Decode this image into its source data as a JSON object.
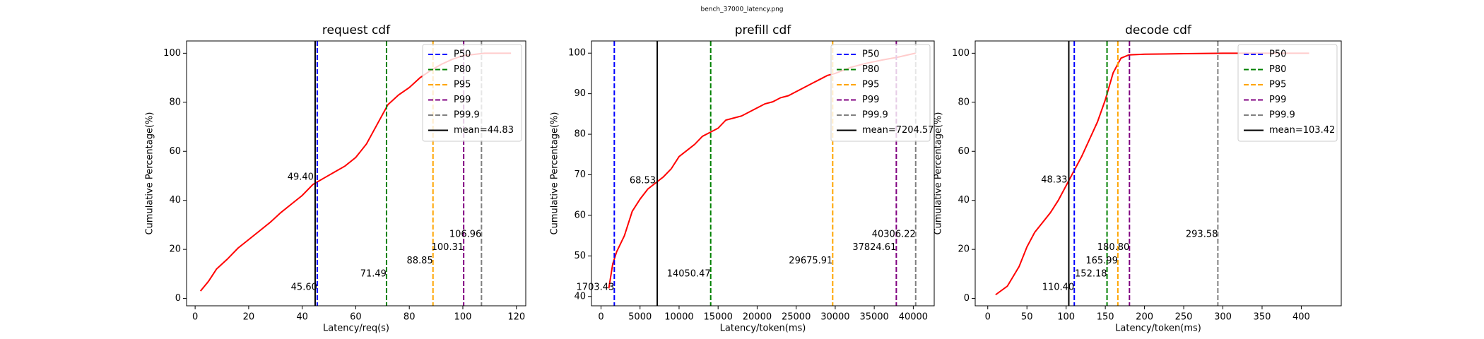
{
  "page_title": "bench_37000_latency.png",
  "chart_data": [
    {
      "type": "line",
      "title": "request cdf",
      "xlabel": "Latency/req(s)",
      "ylabel": "Cumulative Percentage(%)",
      "x": [
        2,
        5,
        8,
        12,
        16,
        20,
        24,
        28,
        32,
        36,
        40,
        44,
        48,
        52,
        56,
        60,
        64,
        68,
        72,
        76,
        80,
        84,
        88,
        92,
        96,
        100,
        104,
        108,
        112,
        118
      ],
      "values": [
        3,
        7,
        12,
        16,
        20.5,
        24,
        27.5,
        31,
        35,
        38.5,
        42,
        46.5,
        49,
        51.5,
        54,
        57.5,
        63,
        71,
        79,
        83,
        86,
        90,
        93,
        95.5,
        97.5,
        99,
        99.5,
        100,
        100,
        100
      ],
      "color": "red",
      "xlim": [
        -3.2,
        123.5
      ],
      "ylim": [
        -3,
        105
      ],
      "xticks": [
        0,
        20,
        40,
        60,
        80,
        100,
        120
      ],
      "yticks": [
        0,
        20,
        40,
        60,
        80,
        100
      ],
      "percentiles": [
        {
          "name": "P50",
          "color": "blue",
          "value": 45.6,
          "label": "45.60"
        },
        {
          "name": "P80",
          "color": "green",
          "value": 71.49,
          "label": "71.49"
        },
        {
          "name": "P95",
          "color": "orange",
          "value": 88.85,
          "label": "88.85"
        },
        {
          "name": "P99",
          "color": "purple",
          "value": 100.31,
          "label": "100.31"
        },
        {
          "name": "P99.9",
          "color": "gray",
          "value": 106.96,
          "label": "106.96"
        }
      ],
      "mean": {
        "name": "mean=44.83",
        "value": 44.83,
        "color": "black",
        "cdf": 49.4,
        "cdf_label": "49.40"
      }
    },
    {
      "type": "line",
      "title": "prefill cdf",
      "xlabel": "Latency/token(ms)",
      "ylabel": "Cumulative Percentage(%)",
      "x": [
        1000,
        1500,
        2000,
        3000,
        4000,
        5000,
        6000,
        7000,
        8000,
        9000,
        10000,
        11000,
        12000,
        13000,
        14000,
        15000,
        16000,
        17000,
        18000,
        19000,
        20000,
        21000,
        22000,
        23000,
        24000,
        25000,
        26000,
        27000,
        28000,
        29000,
        30000,
        32000,
        34000,
        36000,
        38000,
        40300
      ],
      "values": [
        42,
        48,
        51,
        55,
        61,
        64,
        66.5,
        68,
        69.5,
        71.5,
        74.5,
        76,
        77.5,
        79.5,
        80.5,
        81.5,
        83.5,
        84,
        84.5,
        85.5,
        86.5,
        87.5,
        88,
        89,
        89.5,
        90.5,
        91.5,
        92.5,
        93.5,
        94.5,
        95,
        96.5,
        97.5,
        98.3,
        99,
        100
      ],
      "color": "red",
      "xlim": [
        -1220,
        42680
      ],
      "ylim": [
        37.7,
        103
      ],
      "xticks": [
        0,
        5000,
        10000,
        15000,
        20000,
        25000,
        30000,
        35000,
        40000
      ],
      "yticks": [
        40,
        50,
        60,
        70,
        80,
        90,
        100
      ],
      "percentiles": [
        {
          "name": "P50",
          "color": "blue",
          "value": 1703.43,
          "label": "1703.43"
        },
        {
          "name": "P80",
          "color": "green",
          "value": 14050.47,
          "label": "14050.47"
        },
        {
          "name": "P95",
          "color": "orange",
          "value": 29675.91,
          "label": "29675.91"
        },
        {
          "name": "P99",
          "color": "purple",
          "value": 37824.61,
          "label": "37824.61"
        },
        {
          "name": "P99.9",
          "color": "gray",
          "value": 40306.22,
          "label": "40306.22"
        }
      ],
      "mean": {
        "name": "mean=7204.57",
        "value": 7204.57,
        "color": "black",
        "cdf": 68.53,
        "cdf_label": "68.53"
      }
    },
    {
      "type": "line",
      "title": "decode cdf",
      "xlabel": "Latency/token(ms)",
      "ylabel": "Cumulative Percentage(%)",
      "x": [
        10,
        25,
        40,
        50,
        60,
        70,
        80,
        90,
        100,
        110,
        120,
        130,
        140,
        150,
        160,
        170,
        180,
        200,
        250,
        300,
        410
      ],
      "values": [
        1.5,
        5,
        13,
        21,
        27,
        31,
        35,
        40,
        46,
        52,
        58,
        65,
        72,
        81,
        92,
        98,
        99.3,
        99.6,
        99.8,
        100,
        100
      ],
      "color": "red",
      "xlim": [
        -16,
        451
      ],
      "ylim": [
        -3,
        105
      ],
      "xticks": [
        0,
        50,
        100,
        150,
        200,
        250,
        300,
        350,
        400
      ],
      "yticks": [
        0,
        20,
        40,
        60,
        80,
        100
      ],
      "percentiles": [
        {
          "name": "P50",
          "color": "blue",
          "value": 110.4,
          "label": "110.40"
        },
        {
          "name": "P80",
          "color": "green",
          "value": 152.18,
          "label": "152.18"
        },
        {
          "name": "P95",
          "color": "orange",
          "value": 165.99,
          "label": "165.99"
        },
        {
          "name": "P99",
          "color": "purple",
          "value": 180.8,
          "label": "180.80"
        },
        {
          "name": "P99.9",
          "color": "gray",
          "value": 293.58,
          "label": "293.58"
        }
      ],
      "mean": {
        "name": "mean=103.42",
        "value": 103.42,
        "color": "black",
        "cdf": 48.33,
        "cdf_label": "48.33"
      }
    }
  ]
}
